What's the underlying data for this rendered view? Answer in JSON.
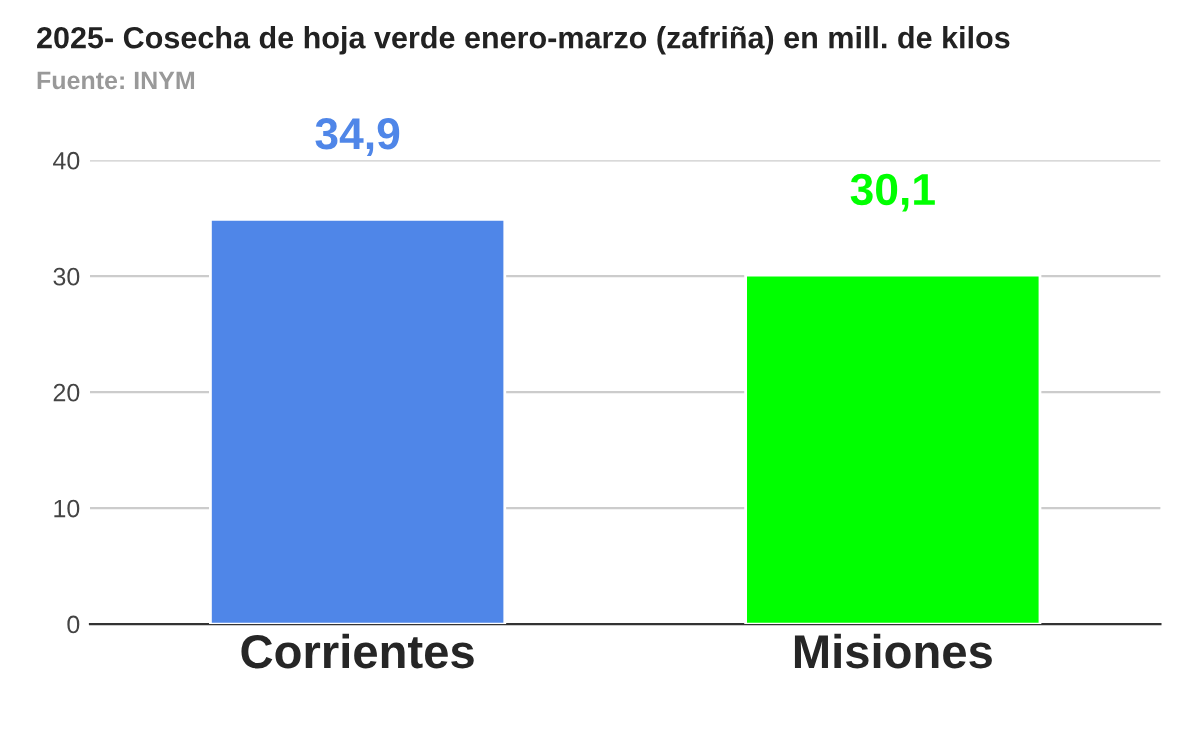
{
  "chart_data": {
    "type": "bar",
    "title": "2025- Cosecha de hoja verde enero-marzo (zafriña) en mill. de kilos",
    "annotations": [
      "Fuente: INYM"
    ],
    "categories": [
      "Corrientes",
      "Misiones"
    ],
    "values": [
      34.9,
      30.1
    ],
    "colors": [
      "#4f86e8",
      "#00ff00"
    ],
    "value_labels": [
      "34,9",
      "30,1"
    ],
    "ylim": [
      0,
      40
    ],
    "yticks": [
      0,
      10,
      20,
      30,
      40
    ],
    "grid": "y",
    "legend": false
  }
}
